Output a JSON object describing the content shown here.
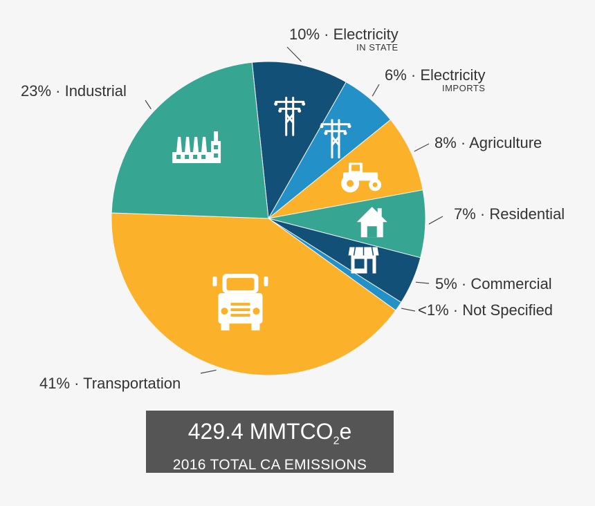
{
  "chart_data": {
    "type": "pie",
    "slices": [
      {
        "key": "elec_in",
        "value": 10,
        "label": "10% · Electricity",
        "sublabel": "IN STATE",
        "color": "#135078",
        "icon": "power-tower-icon"
      },
      {
        "key": "elec_imp",
        "value": 6,
        "label": "6% · Electricity",
        "sublabel": "IMPORTS",
        "color": "#2390c8",
        "icon": "power-tower-icon"
      },
      {
        "key": "agriculture",
        "value": 8,
        "label": "8% · Agriculture",
        "color": "#fbb22a",
        "icon": "tractor-icon"
      },
      {
        "key": "residential",
        "value": 7,
        "label": "7% · Residential",
        "color": "#36a592",
        "icon": "house-icon"
      },
      {
        "key": "commercial",
        "value": 5,
        "label": "5% · Commercial",
        "color": "#135078",
        "icon": "storefront-icon"
      },
      {
        "key": "not_specified",
        "value": 1,
        "label": "<1% · Not Specified",
        "color": "#2390c8",
        "icon": ""
      },
      {
        "key": "transportation",
        "value": 41,
        "label": "41% · Transportation",
        "color": "#fbb22a",
        "icon": "truck-icon"
      },
      {
        "key": "industrial",
        "value": 23,
        "label": "23% · Industrial",
        "color": "#36a592",
        "icon": "factory-icon"
      }
    ]
  },
  "summary": {
    "value_prefix": "429.4 MMTCO",
    "value_subscript": "2",
    "value_suffix": "e",
    "caption": "2016 TOTAL CA EMISSIONS"
  }
}
